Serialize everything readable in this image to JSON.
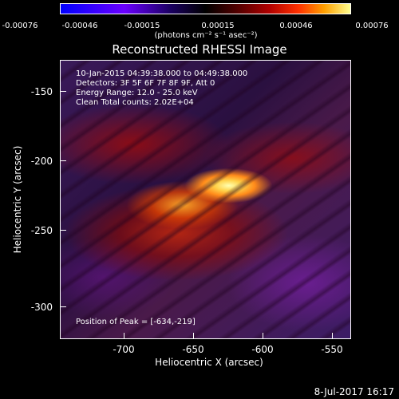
{
  "colorbar": {
    "ticks": [
      "-0.00076",
      "-0.00046",
      "-0.00015",
      "0.00015",
      "0.00046",
      "0.00076"
    ],
    "unit": "(photons cm⁻² s⁻¹ asec⁻²)"
  },
  "title": "Reconstructed RHESSI Image",
  "info": {
    "time": "10-Jan-2015 04:39:38.000 to 04:49:38.000",
    "detectors": "Detectors: 3F 5F 6F 7F 8F 9F, Att 0",
    "energy": "Energy Range: 12.0 - 25.0 keV",
    "clean": "Clean     Total counts: 2.02E+04"
  },
  "peak": "Position of Peak = [-634,-219]",
  "axes": {
    "x_title": "Heliocentric X (arcsec)",
    "y_title": "Heliocentric Y (arcsec)",
    "x_ticks": [
      "-700",
      "-650",
      "-600",
      "-550"
    ],
    "y_ticks": [
      "-150",
      "-200",
      "-250",
      "-300"
    ]
  },
  "date": "8-Jul-2017 16:17"
}
